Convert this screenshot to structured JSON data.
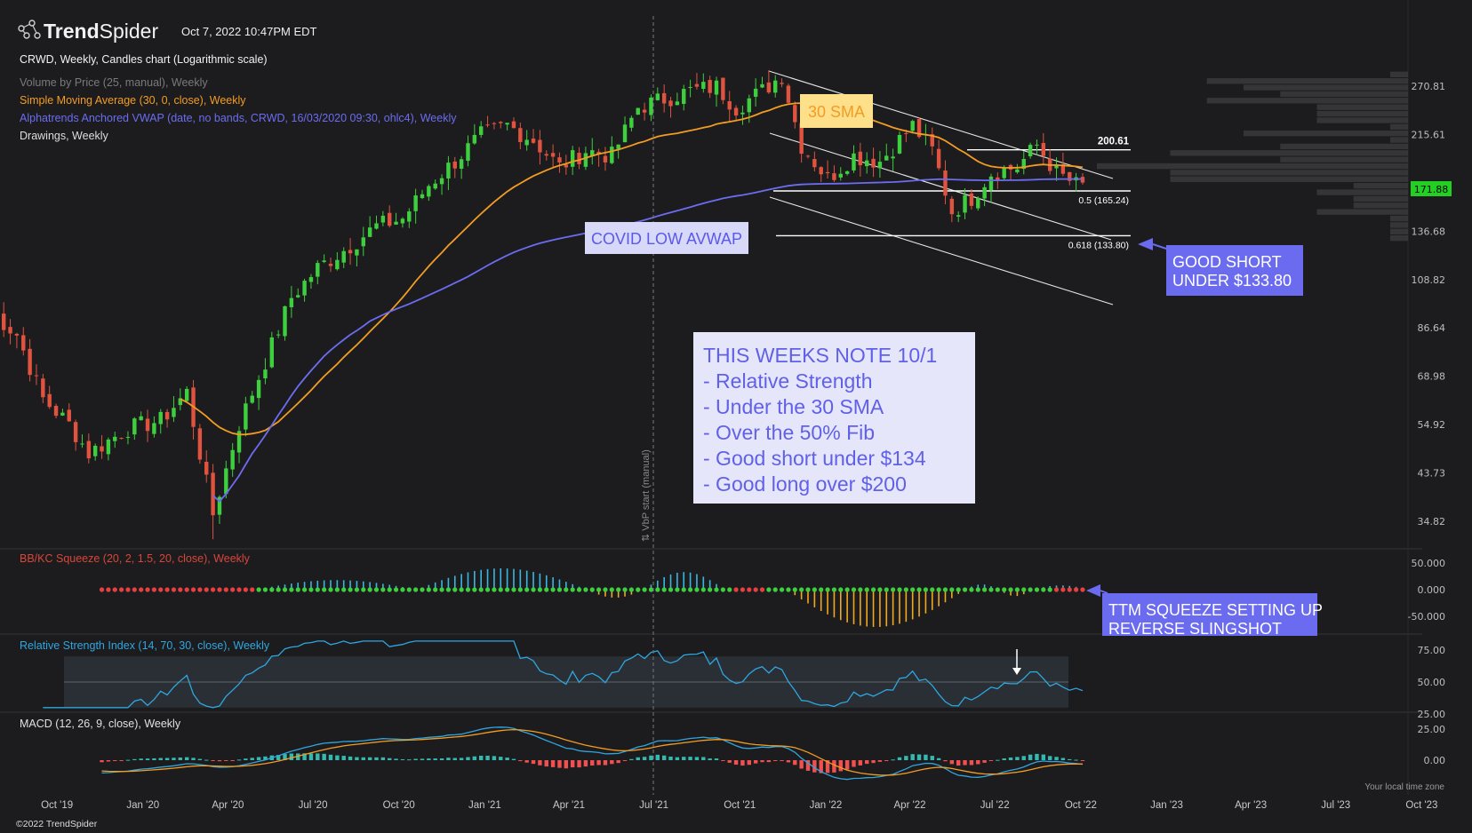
{
  "header": {
    "brand_light": "Trend",
    "brand_bold": "Spider",
    "timestamp": "Oct 7, 2022 10:47PM EDT",
    "chart_title": "CRWD, Weekly, Candles chart (Logarithmic scale)",
    "legend": [
      {
        "label": "Volume by Price (25, manual), Weekly",
        "color": "#7a7a7a"
      },
      {
        "label": "Simple Moving Average (30, 0, close), Weekly",
        "color": "#f39c23"
      },
      {
        "label": "Alphatrends Anchored VWAP (date, no bands, CRWD, 16/03/2020 09:30, ohlc4), Weekly",
        "color": "#6c6cf0"
      },
      {
        "label": "Drawings, Weekly",
        "color": "#dddddd"
      }
    ]
  },
  "footer": {
    "copyright": "©2022 TrendSpider",
    "local_time": "Your local time zone",
    "vbp_start": "⇅ VbP start (manual)"
  },
  "annotations": {
    "sma_label": "30 SMA",
    "avwap_label": "COVID LOW AVWAP",
    "short_label_1": "GOOD SHORT",
    "short_label_2": "UNDER $133.80",
    "squeeze_label_1": "TTM SQUEEZE SETTING UP",
    "squeeze_label_2": "REVERSE SLINGSHOT",
    "note_lines": [
      "THIS WEEKS NOTE 10/1",
      "- Relative Strength",
      "- Under the 30 SMA",
      "- Over the 50% Fib",
      "- Good short under $134",
      "- Good long over $200"
    ],
    "fib_levels": [
      {
        "label": "200.61",
        "value": 200.61
      },
      {
        "label": "0.5 (165.24)",
        "value": 165.24
      },
      {
        "label": "0.618 (133.80)",
        "value": 133.8
      }
    ]
  },
  "colors": {
    "up": "#3ecf3e",
    "down": "#e0533f",
    "sma": "#f39c23",
    "vwap": "#6c6cf0",
    "rsi": "#2fa6e0",
    "macd_signal": "#f39c23",
    "squeeze_on": "#e84040",
    "squeeze_off": "#3ecf3e",
    "hist_pos": "#3ab7e0",
    "hist_neg": "#f0a820",
    "last_price_bg": "#22d022",
    "callout": "#6b6bf0"
  },
  "chart_data": [
    {
      "type": "candlestick",
      "title": "CRWD, Weekly, Candles chart (Logarithmic scale)",
      "scale": "log",
      "y_ticks": [
        "270.81",
        "215.61",
        "171.88",
        "136.68",
        "108.82",
        "86.64",
        "68.98",
        "54.92",
        "43.73",
        "34.82"
      ],
      "last_price": "171.88",
      "x_ticks": [
        "Oct '19",
        "Jan '20",
        "Apr '20",
        "Jul '20",
        "Oct '20",
        "Jan '21",
        "Apr '21",
        "Jul '21",
        "Oct '21",
        "Jan '22",
        "Apr '22",
        "Jul '22",
        "Oct '22",
        "Jan '23",
        "Apr '23",
        "Jul '23",
        "Oct '23"
      ],
      "x_range": [
        "2019-08",
        "2023-11"
      ],
      "weekly_close_anchors": [
        [
          "2019-07-22",
          94
        ],
        [
          "2019-08-19",
          84
        ],
        [
          "2019-09-16",
          62
        ],
        [
          "2019-10-14",
          55
        ],
        [
          "2019-11-04",
          48
        ],
        [
          "2019-12-16",
          54
        ],
        [
          "2020-01-20",
          56
        ],
        [
          "2020-02-17",
          64
        ],
        [
          "2020-03-16",
          36
        ],
        [
          "2020-04-13",
          55
        ],
        [
          "2020-05-11",
          74
        ],
        [
          "2020-06-08",
          100
        ],
        [
          "2020-07-06",
          115
        ],
        [
          "2020-08-03",
          125
        ],
        [
          "2020-09-07",
          140
        ],
        [
          "2020-10-05",
          145
        ],
        [
          "2020-11-02",
          170
        ],
        [
          "2020-11-30",
          190
        ],
        [
          "2020-12-28",
          215
        ],
        [
          "2021-01-25",
          225
        ],
        [
          "2021-02-22",
          210
        ],
        [
          "2021-03-22",
          185
        ],
        [
          "2021-04-19",
          200
        ],
        [
          "2021-05-17",
          195
        ],
        [
          "2021-06-14",
          245
        ],
        [
          "2021-07-12",
          255
        ],
        [
          "2021-08-09",
          265
        ],
        [
          "2021-09-06",
          270
        ],
        [
          "2021-09-27",
          245
        ],
        [
          "2021-10-25",
          265
        ],
        [
          "2021-11-15",
          285
        ],
        [
          "2021-12-06",
          205
        ],
        [
          "2022-01-03",
          175
        ],
        [
          "2022-01-31",
          195
        ],
        [
          "2022-02-28",
          190
        ],
        [
          "2022-04-04",
          225
        ],
        [
          "2022-04-25",
          200
        ],
        [
          "2022-05-16",
          150
        ],
        [
          "2022-06-06",
          160
        ],
        [
          "2022-06-27",
          180
        ],
        [
          "2022-07-25",
          185
        ],
        [
          "2022-08-15",
          205
        ],
        [
          "2022-09-05",
          180
        ],
        [
          "2022-09-26",
          170
        ],
        [
          "2022-10-03",
          171.88
        ]
      ],
      "series": [
        {
          "name": "Simple Moving Average (30, 0, close), Weekly",
          "color": "#f39c23"
        },
        {
          "name": "Alphatrends Anchored VWAP (date, no bands, CRWD, 16/03/2020 09:30, ohlc4), Weekly",
          "color": "#6c6cf0"
        }
      ]
    },
    {
      "type": "bar",
      "title": "BB/KC Squeeze (20, 2, 1.5, 20, close), Weekly",
      "y_ticks": [
        "50.000",
        "0.000",
        "-50.000"
      ],
      "ylim": [
        -75,
        75
      ]
    },
    {
      "type": "line",
      "title": "Relative Strength Index (14, 70, 30, close), Weekly",
      "y_ticks": [
        "75.00",
        "50.00",
        "25.00"
      ],
      "ylim": [
        20,
        80
      ],
      "bands": [
        30,
        70
      ]
    },
    {
      "type": "line",
      "title": "MACD (12, 26, 9, close), Weekly",
      "y_ticks": [
        "25.00",
        "0.00"
      ],
      "ylim": [
        -35,
        42
      ]
    }
  ]
}
